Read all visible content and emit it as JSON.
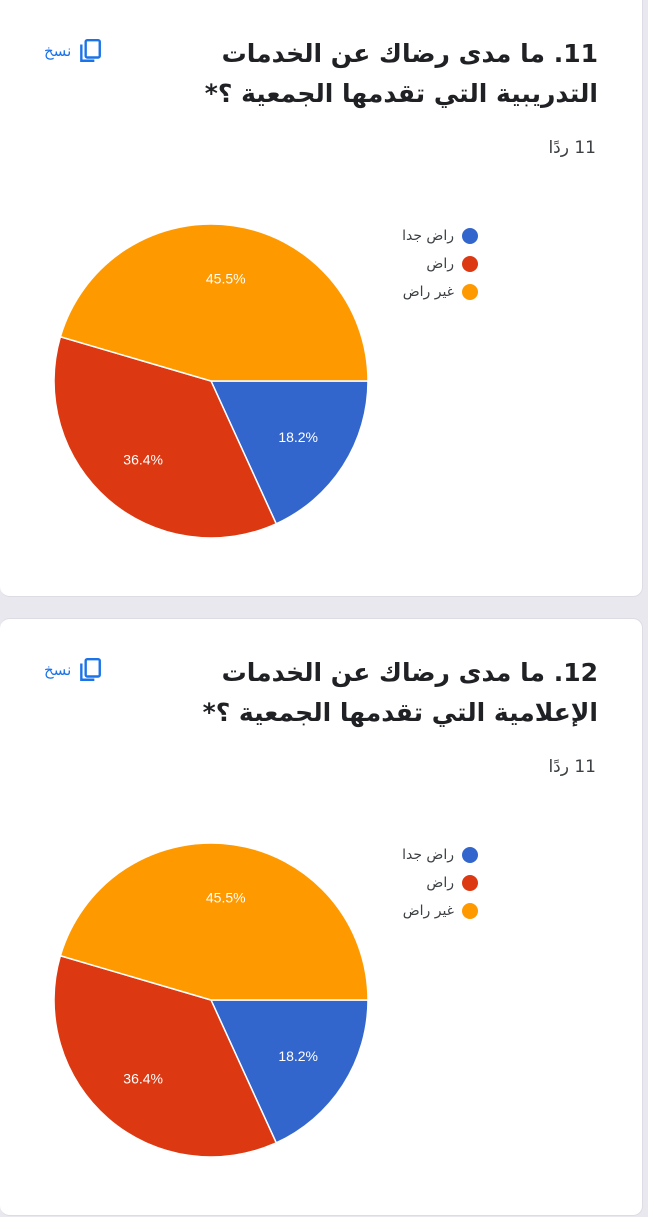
{
  "copy_label": "نسخ",
  "colors": {
    "blue": "#3366cc",
    "red": "#dc3912",
    "orange": "#ff9900",
    "link": "#1a73e8"
  },
  "questions": [
    {
      "number": "11.",
      "title_line1": "ما مدى رضاك عن الخدمات",
      "title_line2": "التدريبية التي تقدمها الجمعية ؟*",
      "responses": "11 ردًا",
      "legend": [
        "راض جدا",
        "راض",
        "غير راض"
      ],
      "chart_data": {
        "type": "pie",
        "labels": [
          "راض جدا",
          "راض",
          "غير راض"
        ],
        "values": [
          18.2,
          36.4,
          45.5
        ],
        "value_labels": [
          "18.2%",
          "36.4%",
          "45.5%"
        ],
        "colors": [
          "#3366cc",
          "#dc3912",
          "#ff9900"
        ],
        "legend_position": "right"
      }
    },
    {
      "number": "12.",
      "title_line1": "ما مدى رضاك عن الخدمات",
      "title_line2": "الإعلامية التي تقدمها الجمعية ؟*",
      "responses": "11 ردًا",
      "legend": [
        "راض جدا",
        "راض",
        "غير راض"
      ],
      "chart_data": {
        "type": "pie",
        "labels": [
          "راض جدا",
          "راض",
          "غير راض"
        ],
        "values": [
          18.2,
          36.4,
          45.5
        ],
        "value_labels": [
          "18.2%",
          "36.4%",
          "45.5%"
        ],
        "colors": [
          "#3366cc",
          "#dc3912",
          "#ff9900"
        ],
        "legend_position": "right"
      }
    }
  ]
}
